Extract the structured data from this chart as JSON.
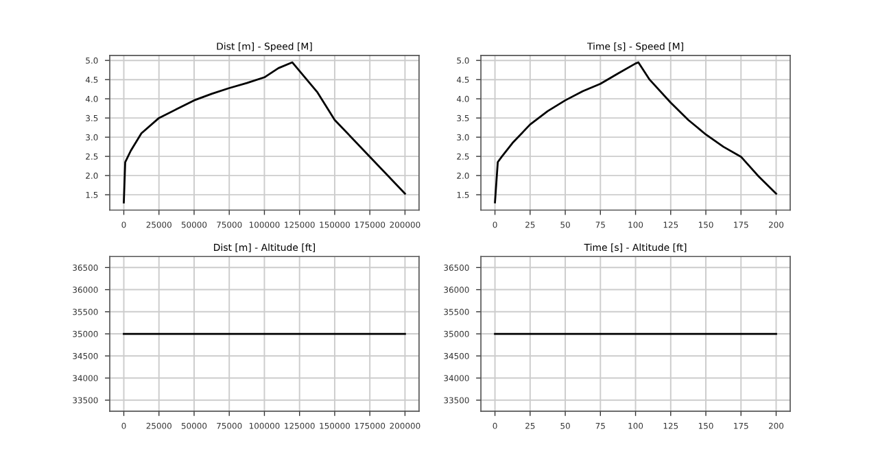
{
  "chart_data": [
    {
      "type": "line",
      "title": "Dist [m] - Speed [M]",
      "grid": true,
      "series": [
        {
          "color": "#000000",
          "x": [
            0,
            1000,
            5000,
            12500,
            25000,
            37500,
            50000,
            62500,
            75000,
            87500,
            100000,
            110000,
            119800,
            137500,
            150000,
            175000,
            200000
          ],
          "values": [
            1.3,
            2.35,
            2.65,
            3.1,
            3.5,
            3.73,
            3.96,
            4.13,
            4.28,
            4.41,
            4.56,
            4.8,
            4.95,
            4.18,
            3.45,
            2.49,
            1.53
          ]
        }
      ],
      "xlim": [
        -10000,
        210000
      ],
      "ylim": [
        1.1,
        5.13
      ],
      "xticks": [
        0,
        25000,
        50000,
        75000,
        100000,
        125000,
        150000,
        175000,
        200000
      ],
      "yticks": [
        1.5,
        {
          "value": 2,
          "label": "2.0"
        },
        2.5,
        {
          "value": 3,
          "label": "3.0"
        },
        3.5,
        {
          "value": 4,
          "label": "4.0"
        },
        4.5,
        {
          "value": 5,
          "label": "5.0"
        }
      ]
    },
    {
      "type": "line",
      "title": "Time [s] - Speed [M]",
      "grid": true,
      "series": [
        {
          "color": "#000000",
          "x": [
            0,
            2,
            5,
            12.5,
            25,
            37.5,
            50,
            62.5,
            75,
            87.5,
            100,
            102,
            110,
            125,
            137.5,
            150,
            162.5,
            175,
            187.5,
            200
          ],
          "values": [
            1.3,
            2.35,
            2.5,
            2.85,
            3.33,
            3.68,
            3.96,
            4.2,
            4.39,
            4.66,
            4.92,
            4.95,
            4.5,
            3.9,
            3.45,
            3.07,
            2.75,
            2.49,
            1.98,
            1.53
          ]
        }
      ],
      "xlim": [
        -10,
        210
      ],
      "ylim": [
        1.1,
        5.13
      ],
      "xticks": [
        0,
        25,
        50,
        75,
        100,
        125,
        150,
        175,
        200
      ],
      "yticks": [
        1.5,
        {
          "value": 2,
          "label": "2.0"
        },
        2.5,
        {
          "value": 3,
          "label": "3.0"
        },
        3.5,
        {
          "value": 4,
          "label": "4.0"
        },
        4.5,
        {
          "value": 5,
          "label": "5.0"
        }
      ]
    },
    {
      "type": "line",
      "title": "Dist [m] - Altitude [ft]",
      "grid": true,
      "series": [
        {
          "color": "#000000",
          "x": [
            0,
            200000
          ],
          "values": [
            35000,
            35000
          ]
        }
      ],
      "xlim": [
        -10000,
        210000
      ],
      "ylim": [
        33250,
        36750
      ],
      "xticks": [
        0,
        25000,
        50000,
        75000,
        100000,
        125000,
        150000,
        175000,
        200000
      ],
      "yticks": [
        33500,
        34000,
        34500,
        35000,
        35500,
        36000,
        36500
      ]
    },
    {
      "type": "line",
      "title": "Time [s] - Altitude [ft]",
      "grid": true,
      "series": [
        {
          "color": "#000000",
          "x": [
            0,
            200
          ],
          "values": [
            35000,
            35000
          ]
        }
      ],
      "xlim": [
        -10,
        210
      ],
      "ylim": [
        33250,
        36750
      ],
      "xticks": [
        0,
        25,
        50,
        75,
        100,
        125,
        150,
        175,
        200
      ],
      "yticks": [
        33500,
        34000,
        34500,
        35000,
        35500,
        36000,
        36500
      ]
    }
  ]
}
